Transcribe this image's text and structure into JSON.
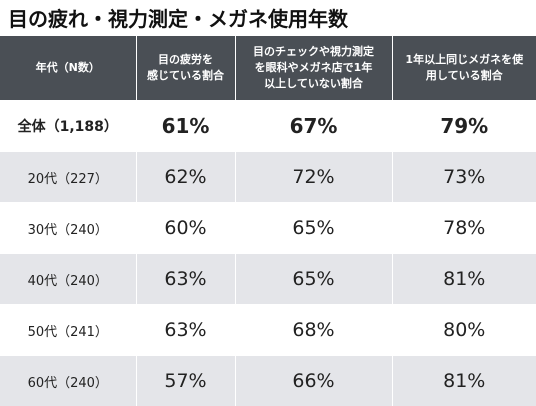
{
  "title": "目の疲れ・視力測定・メガネ使用年数",
  "chart_data": {
    "type": "table",
    "columns": [
      "年代（N数）",
      "目の疲労を\n感じている割合",
      "目のチェックや視力測定\nを眼科やメガネ店で1年\n以上していない割合",
      "1年以上同じメガネを使\n用している割合"
    ],
    "rows": [
      {
        "label": "全体（1,188）",
        "values": [
          "61%",
          "67%",
          "79%"
        ]
      },
      {
        "label": "20代（227）",
        "values": [
          "62%",
          "72%",
          "73%"
        ]
      },
      {
        "label": "30代（240）",
        "values": [
          "60%",
          "65%",
          "78%"
        ]
      },
      {
        "label": "40代（240）",
        "values": [
          "63%",
          "65%",
          "81%"
        ]
      },
      {
        "label": "50代（241）",
        "values": [
          "63%",
          "68%",
          "80%"
        ]
      },
      {
        "label": "60代（240）",
        "values": [
          "57%",
          "66%",
          "81%"
        ]
      }
    ]
  },
  "colors": {
    "header_bg": "#4a4f55",
    "header_text": "#ffffff",
    "band_bg": "#e4e5e9",
    "plain_bg": "#ffffff"
  }
}
